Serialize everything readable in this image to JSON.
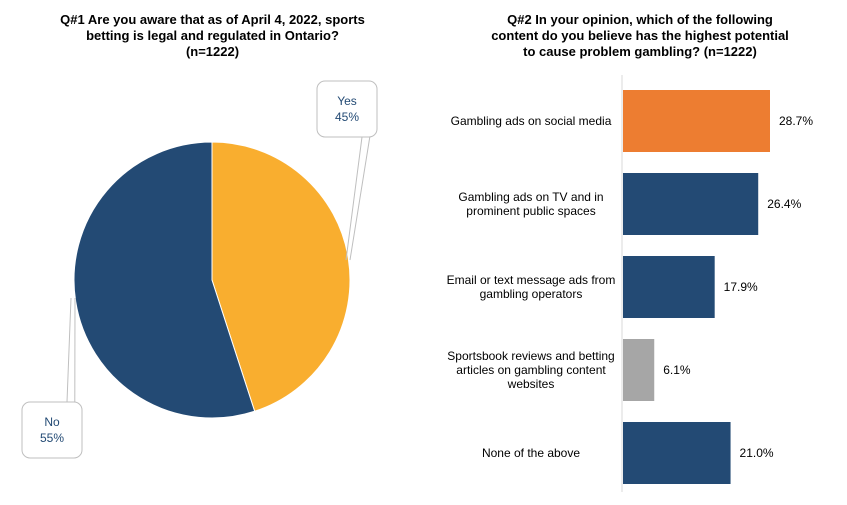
{
  "chart_data": [
    {
      "type": "pie",
      "title": "Q#1 Are you aware that as of April 4, 2022, sports\nbetting is legal and regulated in Ontario?\n(n=1222)",
      "slices": [
        {
          "label": "Yes",
          "value": 45,
          "display": "45%",
          "color": "#F9AE2F"
        },
        {
          "label": "No",
          "value": 55,
          "display": "55%",
          "color": "#234A74"
        }
      ]
    },
    {
      "type": "bar",
      "orientation": "horizontal",
      "title": "Q#2 In your opinion, which of the following\ncontent do you believe has the highest potential\nto cause problem gambling? (n=1222)",
      "categories": [
        "Gambling ads on social media",
        "Gambling ads on TV and in\nprominent public spaces",
        "Email or text message ads from\ngambling operators",
        "Sportsbook reviews and betting\narticles on gambling content\nwebsites",
        "None of the above"
      ],
      "values": [
        28.7,
        26.4,
        17.9,
        6.1,
        21.0
      ],
      "value_labels": [
        "28.7%",
        "26.4%",
        "17.9%",
        "6.1%",
        "21.0%"
      ],
      "colors": [
        "#ED7D31",
        "#234A74",
        "#234A74",
        "#A6A6A6",
        "#234A74"
      ],
      "xlim": [
        0,
        35
      ]
    }
  ]
}
